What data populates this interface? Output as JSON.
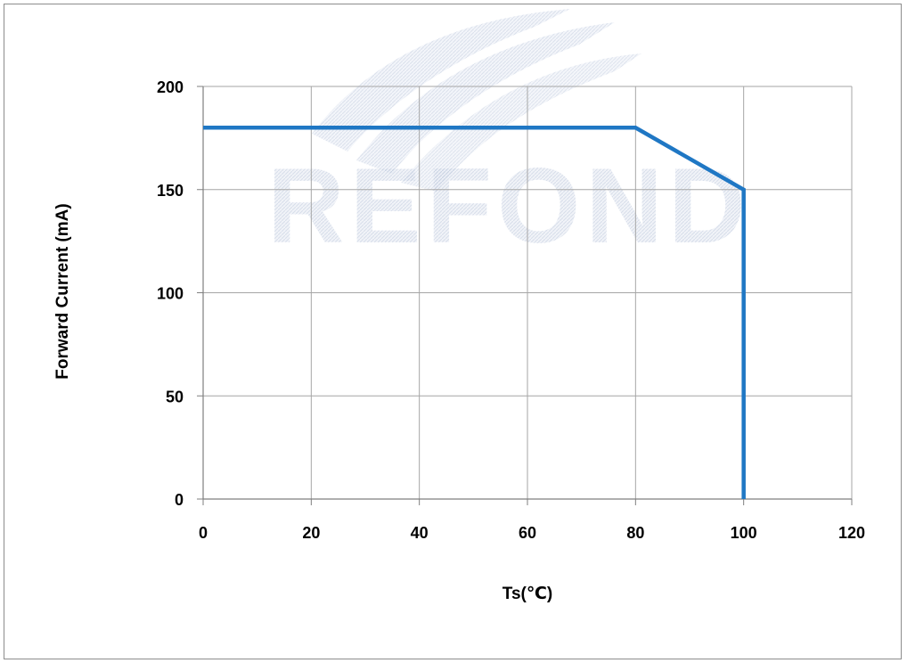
{
  "watermark": {
    "text": "REFOND"
  },
  "colors": {
    "series": "#1f77c4",
    "grid": "#a6a6a6",
    "axis": "#7f7f7f",
    "watermark": "#cdd6e6"
  },
  "chart_data": {
    "type": "line",
    "title": "",
    "xlabel": "Ts(℃)",
    "ylabel": "Forward Current (mA)",
    "xlim": [
      0,
      120
    ],
    "ylim": [
      0,
      200
    ],
    "xticks": [
      0,
      20,
      40,
      60,
      80,
      100,
      120
    ],
    "yticks": [
      0,
      50,
      100,
      150,
      200
    ],
    "grid": true,
    "legend": "none",
    "series": [
      {
        "x": [
          0,
          80,
          100,
          100
        ],
        "y": [
          180,
          180,
          150,
          0
        ]
      }
    ]
  }
}
